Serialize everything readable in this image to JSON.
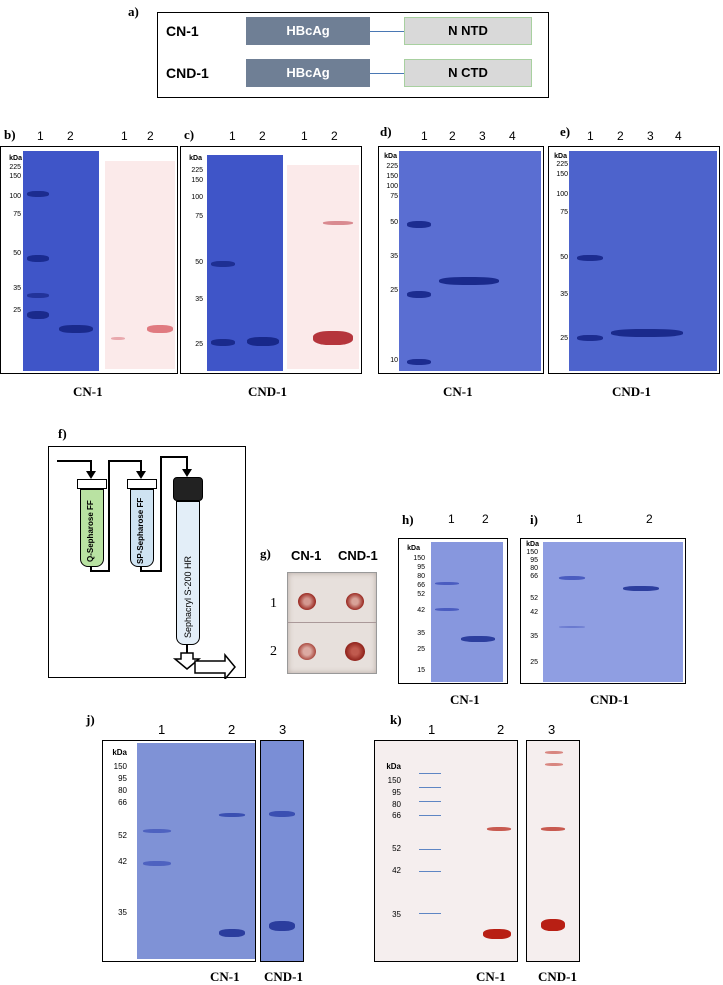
{
  "panel_a": {
    "label": "a)",
    "rows": [
      {
        "name": "CN-1",
        "core": "HBcAg",
        "domain": "N NTD"
      },
      {
        "name": "CND-1",
        "core": "HBcAg",
        "domain": "N CTD"
      }
    ]
  },
  "panel_b": {
    "label": "b)",
    "kda_title": "kDa",
    "markers": [
      "225",
      "150",
      "100",
      "75",
      "50",
      "35",
      "25"
    ],
    "lanes": [
      "1",
      "2",
      "1",
      "2"
    ],
    "caption": "CN-1"
  },
  "panel_c": {
    "label": "c)",
    "kda_title": "kDa",
    "markers": [
      "225",
      "150",
      "100",
      "75",
      "50",
      "35",
      "25"
    ],
    "lanes": [
      "1",
      "2",
      "1",
      "2"
    ],
    "caption": "CND-1"
  },
  "panel_d": {
    "label": "d)",
    "kda_title": "kDa",
    "markers": [
      "225",
      "150",
      "100",
      "75",
      "50",
      "35",
      "25",
      "10"
    ],
    "lanes": [
      "1",
      "2",
      "3",
      "4"
    ],
    "caption": "CN-1"
  },
  "panel_e": {
    "label": "e)",
    "kda_title": "kDa",
    "markers": [
      "225",
      "150",
      "100",
      "75",
      "50",
      "35",
      "25"
    ],
    "lanes": [
      "1",
      "2",
      "3",
      "4"
    ],
    "caption": "CND-1"
  },
  "panel_f": {
    "label": "f)",
    "columns": [
      "Q-Sepharose FF",
      "SP-Sepharose FF",
      "Sephacryl S-200 HR"
    ]
  },
  "panel_g": {
    "label": "g)",
    "col_headers": [
      "CN-1",
      "CND-1"
    ],
    "row_labels": [
      "1",
      "2"
    ]
  },
  "panel_h": {
    "label": "h)",
    "kda_title": "kDa",
    "markers": [
      "150",
      "95",
      "80",
      "66",
      "52",
      "42",
      "35",
      "25",
      "15"
    ],
    "lanes": [
      "1",
      "2"
    ],
    "caption": "CN-1"
  },
  "panel_i": {
    "label": "i)",
    "kda_title": "kDa",
    "markers": [
      "150",
      "95",
      "80",
      "66",
      "52",
      "42",
      "35",
      "25"
    ],
    "lanes": [
      "1",
      "2"
    ],
    "caption": "CND-1"
  },
  "panel_j": {
    "label": "j)",
    "kda_title": "kDa",
    "markers": [
      "150",
      "95",
      "80",
      "66",
      "52",
      "42",
      "35"
    ],
    "lanes": [
      "1",
      "2",
      "3"
    ],
    "captions": [
      "CN-1",
      "CND-1"
    ]
  },
  "panel_k": {
    "label": "k)",
    "kda_title": "kDa",
    "markers": [
      "150",
      "95",
      "80",
      "66",
      "52",
      "42",
      "35"
    ],
    "lanes": [
      "1",
      "2",
      "3"
    ],
    "captions": [
      "CN-1",
      "CND-1"
    ]
  },
  "colors": {
    "gel_blue": "#3f55c8",
    "membrane_pink": "#fbeaea",
    "band_red": "#c0281e",
    "box_blue": "#6f7f95",
    "box_grey": "#d9d9d9"
  }
}
